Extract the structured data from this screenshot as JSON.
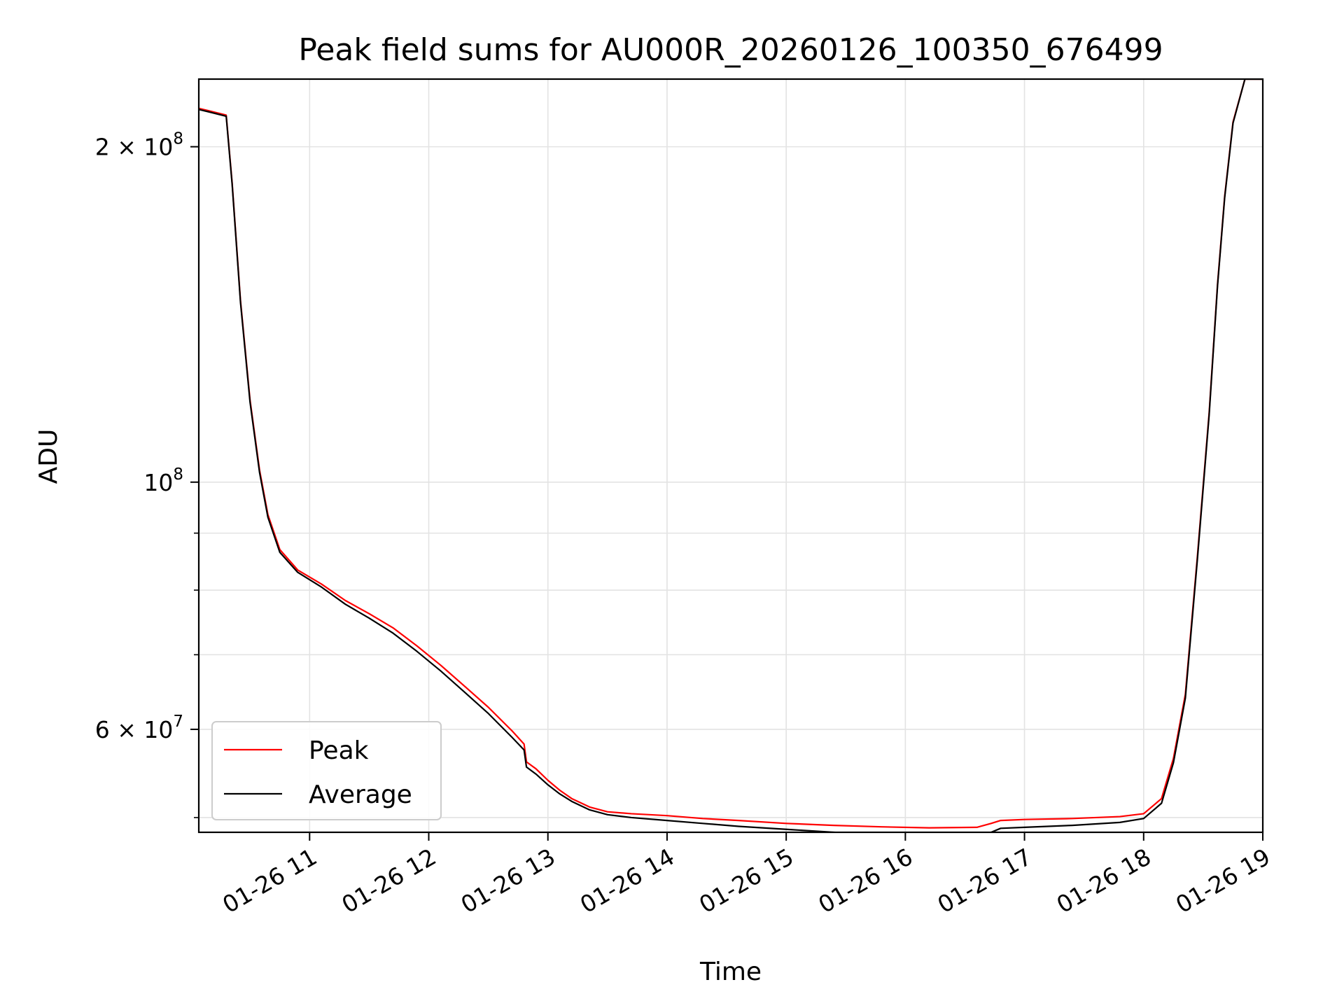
{
  "chart_data": {
    "type": "line",
    "title": "Peak field sums for AU000R_20260126_100350_676499",
    "xlabel": "Time",
    "ylabel": "ADU",
    "yscale": "log",
    "grid": true,
    "xlim": [
      10.07,
      19.0
    ],
    "ylim": [
      48500000,
      230000000
    ],
    "xticks": [
      {
        "value": 11,
        "label": "01-26 11"
      },
      {
        "value": 12,
        "label": "01-26 12"
      },
      {
        "value": 13,
        "label": "01-26 13"
      },
      {
        "value": 14,
        "label": "01-26 14"
      },
      {
        "value": 15,
        "label": "01-26 15"
      },
      {
        "value": 16,
        "label": "01-26 16"
      },
      {
        "value": 17,
        "label": "01-26 17"
      },
      {
        "value": 18,
        "label": "01-26 18"
      },
      {
        "value": 19,
        "label": "01-26 19"
      }
    ],
    "yticks_major": [
      {
        "value": 60000000,
        "mantissa": "6",
        "exp": "7"
      },
      {
        "value": 100000000,
        "mantissa": "",
        "exp": "8"
      },
      {
        "value": 200000000,
        "mantissa": "2",
        "exp": "8"
      }
    ],
    "yticks_minor": [
      50000000,
      70000000,
      80000000,
      90000000
    ],
    "legend": {
      "position": "lower-left",
      "entries": [
        {
          "label": "Peak",
          "color": "#ff0000"
        },
        {
          "label": "Average",
          "color": "#000000"
        }
      ]
    },
    "x_unit": "hour of day on 01-26",
    "series": [
      {
        "name": "Average",
        "color": "#000000",
        "x": [
          10.07,
          10.15,
          10.3,
          10.35,
          10.42,
          10.5,
          10.58,
          10.65,
          10.75,
          10.9,
          11.1,
          11.3,
          11.5,
          11.7,
          11.9,
          12.1,
          12.3,
          12.5,
          12.7,
          12.8,
          12.82,
          12.9,
          13.0,
          13.1,
          13.2,
          13.35,
          13.5,
          13.7,
          14.0,
          14.3,
          14.6,
          15.0,
          15.4,
          15.8,
          16.2,
          16.6,
          16.72,
          16.8,
          17.0,
          17.4,
          17.8,
          18.0,
          18.15,
          18.25,
          18.35,
          18.45,
          18.55,
          18.62,
          18.68,
          18.75,
          18.85,
          19.0
        ],
        "y": [
          216000000,
          215000000,
          213000000,
          185000000,
          145000000,
          118000000,
          102000000,
          93000000,
          86500000,
          83000000,
          80500000,
          77700000,
          75500000,
          73200000,
          70500000,
          67700000,
          64800000,
          62000000,
          59000000,
          57500000,
          55500000,
          54700000,
          53500000,
          52500000,
          51700000,
          50800000,
          50300000,
          50000000,
          49700000,
          49400000,
          49100000,
          48800000,
          48500000,
          48250000,
          48100000,
          48200000,
          48500000,
          48900000,
          49000000,
          49200000,
          49500000,
          49900000,
          51500000,
          56000000,
          64000000,
          85000000,
          115000000,
          150000000,
          180000000,
          210000000,
          230000000,
          230000000
        ]
      },
      {
        "name": "Peak",
        "color": "#ff0000",
        "x": [
          10.07,
          10.15,
          10.3,
          10.35,
          10.42,
          10.5,
          10.58,
          10.65,
          10.75,
          10.9,
          11.1,
          11.3,
          11.5,
          11.7,
          11.9,
          12.1,
          12.3,
          12.5,
          12.7,
          12.8,
          12.82,
          12.9,
          13.0,
          13.1,
          13.2,
          13.35,
          13.5,
          13.7,
          14.0,
          14.3,
          14.6,
          15.0,
          15.4,
          15.8,
          16.2,
          16.6,
          16.72,
          16.8,
          17.0,
          17.4,
          17.8,
          18.0,
          18.15,
          18.25,
          18.35,
          18.45,
          18.55,
          18.62,
          18.68,
          18.75,
          18.85,
          19.0
        ],
        "y": [
          216500000,
          215500000,
          213500000,
          185500000,
          145500000,
          118500000,
          102500000,
          93500000,
          87000000,
          83400000,
          81000000,
          78300000,
          76200000,
          74000000,
          71300000,
          68500000,
          65600000,
          62800000,
          59800000,
          58200000,
          56100000,
          55300000,
          54000000,
          52900000,
          52000000,
          51100000,
          50600000,
          50400000,
          50200000,
          49900000,
          49700000,
          49400000,
          49200000,
          49050000,
          48950000,
          49000000,
          49400000,
          49700000,
          49800000,
          49900000,
          50100000,
          50400000,
          52000000,
          56500000,
          64500000,
          85500000,
          115500000,
          150500000,
          180500000,
          210500000,
          230000000,
          230000000
        ]
      }
    ]
  }
}
